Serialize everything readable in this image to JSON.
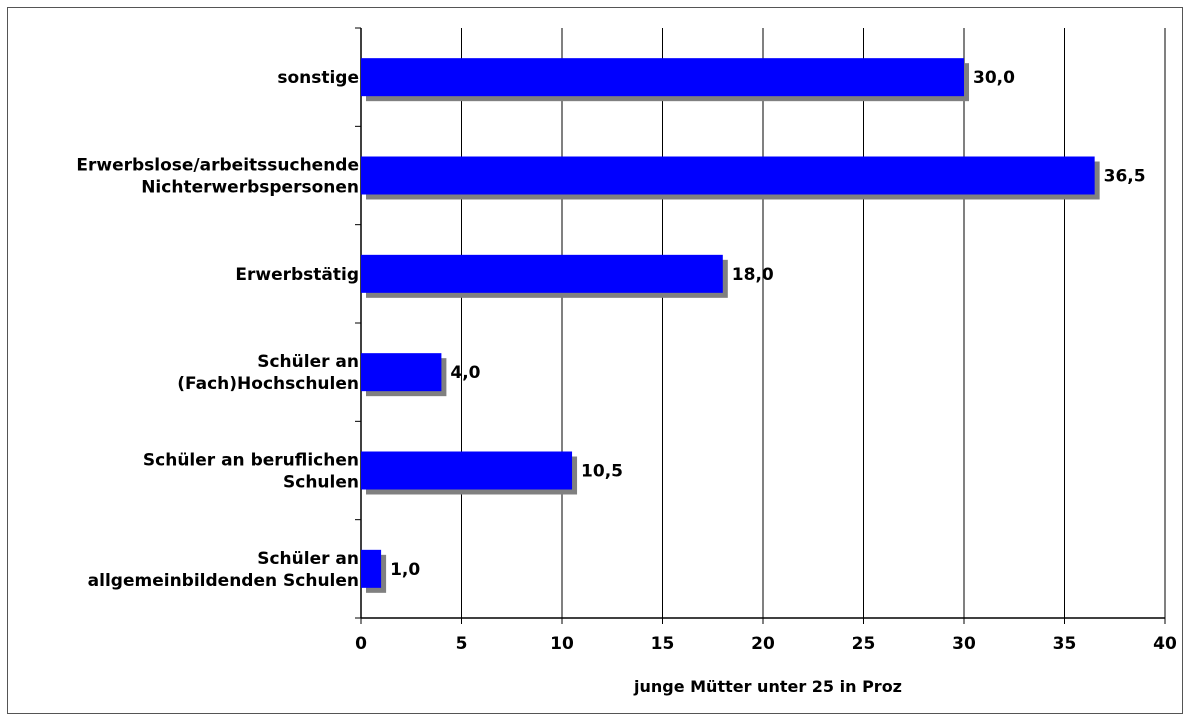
{
  "chart_data": {
    "type": "bar",
    "orientation": "horizontal",
    "title": "",
    "xlabel": "junge Mütter unter 25 in Proz",
    "ylabel": "",
    "xlim": [
      0,
      40
    ],
    "x_ticks": [
      0,
      5,
      10,
      15,
      20,
      25,
      30,
      35,
      40
    ],
    "grid": true,
    "legend": "none",
    "bar_color": "#0000ff",
    "shadow_color": "#808080",
    "categories": [
      [
        "sonstige"
      ],
      [
        "Erwerbslose/arbeitssuchende",
        "Nichterwerbspersonen"
      ],
      [
        "Erwerbstätig"
      ],
      [
        "Schüler an",
        "(Fach)Hochschulen"
      ],
      [
        "Schüler an beruflichen",
        "Schulen"
      ],
      [
        "Schüler an",
        "allgemeinbildenden Schulen"
      ]
    ],
    "values": [
      30.0,
      36.5,
      18.0,
      4.0,
      10.5,
      1.0
    ],
    "value_labels": [
      "30,0",
      "36,5",
      "18,0",
      "4,0",
      "10,5",
      "1,0"
    ]
  }
}
